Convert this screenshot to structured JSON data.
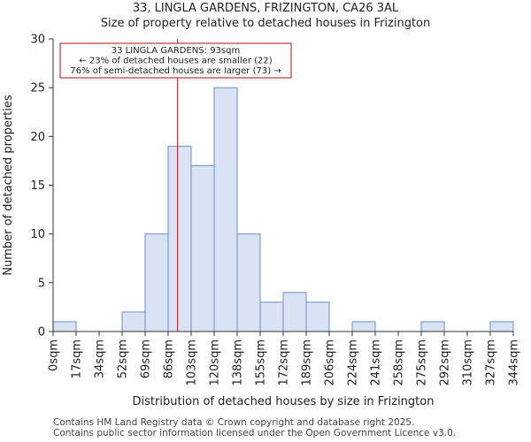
{
  "title": "33, LINGLA GARDENS, FRIZINGTON, CA26 3AL",
  "subtitle": "Size of property relative to detached houses in Frizington",
  "footer": {
    "line1": "Contains HM Land Registry data © Crown copyright and database right 2025.",
    "line2": "Contains public sector information licensed under the Open Government Licence v3.0."
  },
  "chart_data": {
    "type": "bar",
    "xlabel": "Distribution of detached houses by size in Frizington",
    "ylabel": "Number of detached properties",
    "tick_labels": [
      "0sqm",
      "17sqm",
      "34sqm",
      "52sqm",
      "69sqm",
      "86sqm",
      "103sqm",
      "120sqm",
      "138sqm",
      "155sqm",
      "172sqm",
      "189sqm",
      "206sqm",
      "224sqm",
      "241sqm",
      "258sqm",
      "275sqm",
      "292sqm",
      "310sqm",
      "327sqm",
      "344sqm"
    ],
    "bin_edges": [
      0,
      17,
      34,
      52,
      69,
      86,
      103,
      120,
      138,
      155,
      172,
      189,
      206,
      224,
      241,
      258,
      275,
      292,
      310,
      327,
      344
    ],
    "values": [
      1,
      0,
      0,
      2,
      10,
      19,
      17,
      25,
      10,
      3,
      4,
      3,
      0,
      1,
      0,
      0,
      1,
      0,
      0,
      1
    ],
    "ylim": [
      0,
      30
    ],
    "yticks": [
      0,
      5,
      10,
      15,
      20,
      25,
      30
    ],
    "grid": false,
    "bar_fill": "#dae3f3",
    "bar_stroke": "#6b8fc7",
    "marker": {
      "x": 93,
      "color": "#aa1111"
    },
    "annotation": {
      "lines": [
        "33 LINGLA GARDENS: 93sqm",
        "← 23% of detached houses are smaller (22)",
        "76% of semi-detached houses are larger (73) →"
      ],
      "border_color": "#aa1111"
    }
  }
}
